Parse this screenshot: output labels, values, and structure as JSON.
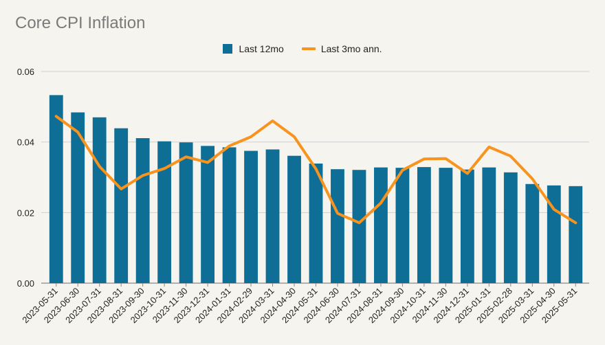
{
  "chart_data": {
    "type": "bar",
    "title": "Core CPI Inflation",
    "categories": [
      "2023-05-31",
      "2023-06-30",
      "2023-07-31",
      "2023-08-31",
      "2023-09-30",
      "2023-10-31",
      "2023-11-30",
      "2023-12-31",
      "2024-01-31",
      "2024-02-29",
      "2024-03-31",
      "2024-04-30",
      "2024-05-31",
      "2024-06-30",
      "2024-07-31",
      "2024-08-31",
      "2024-09-30",
      "2024-10-31",
      "2024-11-30",
      "2024-12-31",
      "2025-01-31",
      "2025-02-28",
      "2025-03-31",
      "2025-04-30",
      "2025-05-31"
    ],
    "series": [
      {
        "name": "Last 12mo",
        "type": "bar",
        "color": "#0f6e96",
        "values": [
          0.0533,
          0.0484,
          0.047,
          0.0439,
          0.0411,
          0.0402,
          0.0399,
          0.0389,
          0.0385,
          0.0375,
          0.0379,
          0.0361,
          0.0339,
          0.0323,
          0.0321,
          0.0328,
          0.0327,
          0.0329,
          0.0327,
          0.0322,
          0.0328,
          0.0314,
          0.0281,
          0.0277,
          0.0275
        ]
      },
      {
        "name": "Last 3mo ann.",
        "type": "line",
        "color": "#f8941d",
        "values": [
          0.0473,
          0.0428,
          0.0331,
          0.0267,
          0.0305,
          0.0325,
          0.0358,
          0.0342,
          0.0389,
          0.0415,
          0.046,
          0.0415,
          0.0324,
          0.0198,
          0.0171,
          0.0227,
          0.032,
          0.0352,
          0.0353,
          0.0311,
          0.0386,
          0.036,
          0.0296,
          0.0209,
          0.0171
        ]
      }
    ],
    "ylim": [
      0,
      0.06
    ],
    "yticks": [
      "0.00",
      "0.02",
      "0.04",
      "0.06"
    ],
    "grid": true,
    "legend_position": "top-center",
    "xlabel": "",
    "ylabel": ""
  }
}
